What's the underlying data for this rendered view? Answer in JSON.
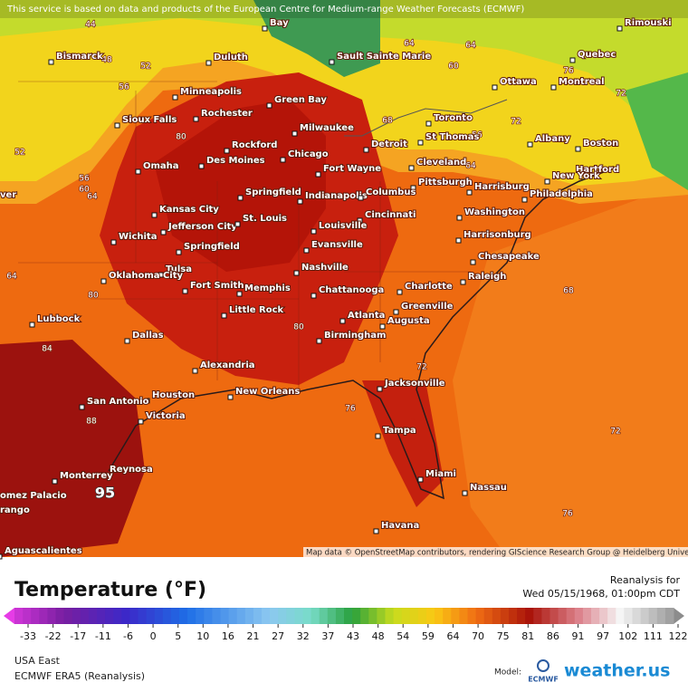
{
  "header": {
    "notice": "This service is based on data and products of the European Centre for Medium-range Weather Forecasts (ECMWF)"
  },
  "map": {
    "cities": [
      "Bay",
      "Rimouski",
      "Bismarck",
      "Duluth",
      "Sault Sainte Marie",
      "Quebec",
      "Ottawa",
      "Montreal",
      "Minneapolis",
      "Rochester",
      "Green Bay",
      "Sioux Falls",
      "Toronto",
      "Milwaukee",
      "St Thomas",
      "Albany",
      "Boston",
      "Rockford",
      "Detroit",
      "Chicago",
      "Des Moines",
      "Omaha",
      "Cleveland",
      "Fort Wayne",
      "Hartford",
      "New York",
      "Harrisburg",
      "Pittsburgh",
      "Philadelphia",
      "Springfield",
      "Indianapolis",
      "Columbus",
      "Kansas City",
      "Cincinnati",
      "Washington",
      "Jefferson City",
      "St. Louis",
      "Louisville",
      "Wichita",
      "Harrisonburg",
      "Springfield",
      "Evansville",
      "Chesapeake",
      "Tulsa",
      "Oklahoma City",
      "Nashville",
      "Raleigh",
      "Fort Smith",
      "Memphis",
      "Chattanooga",
      "Charlotte",
      "Greenville",
      "Little Rock",
      "Lubbock",
      "Atlanta",
      "Augusta",
      "Dallas",
      "Birmingham",
      "Alexandria",
      "Jacksonville",
      "Houston",
      "New Orleans",
      "San Antonio",
      "Victoria",
      "Tampa",
      "Reynosa",
      "Monterrey",
      "Miami",
      "Nassau",
      "omez Palacio",
      "rango",
      "Havana",
      "Aguascalientes",
      "ver"
    ],
    "contour_labels": [
      44,
      48,
      52,
      56,
      52,
      56,
      60,
      64,
      64,
      80,
      84,
      80,
      76,
      72,
      72,
      68,
      76,
      64,
      56,
      68,
      72,
      72,
      64,
      60,
      64,
      76,
      80,
      88
    ],
    "max_label": 95,
    "attribution": "Map data © OpenStreetMap contributors, rendering GIScience Research Group @ Heidelberg University"
  },
  "legend": {
    "title": "Temperature (°F)",
    "ticks": [
      -33,
      -22,
      -17,
      -11,
      -6,
      0,
      5,
      10,
      16,
      21,
      27,
      32,
      37,
      43,
      48,
      54,
      59,
      64,
      70,
      75,
      81,
      86,
      91,
      97,
      102,
      111,
      122
    ]
  },
  "info": {
    "reanalysis": "Reanalysis for",
    "valid_time": "Wed 05/15/1968, 01:00pm CDT",
    "region": "USA East",
    "model": "ECMWF ERA5 (Reanalysis)",
    "model_label": "Model:",
    "model_logo": "ECMWF",
    "brand": "weather.us"
  }
}
